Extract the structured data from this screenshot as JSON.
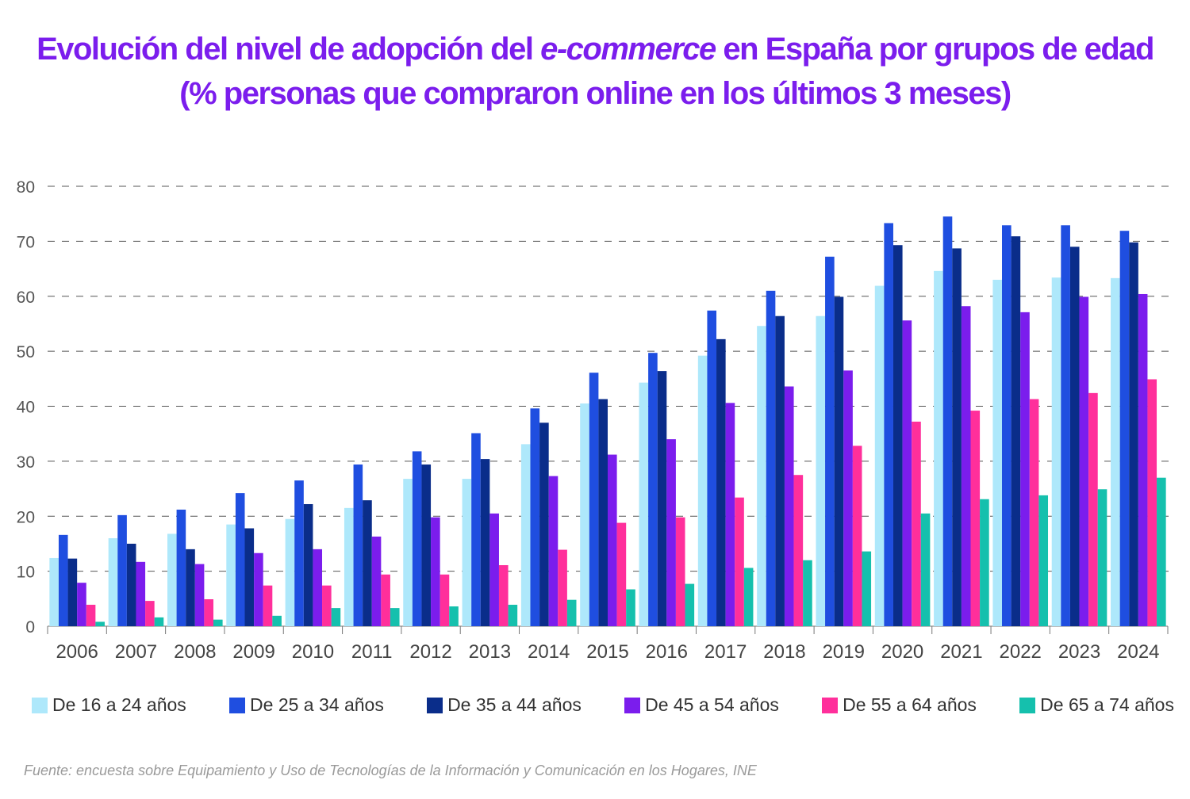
{
  "title": {
    "line1_pre": "Evolución del nivel de adopción del ",
    "line1_italic": "e-commerce",
    "line1_post": " en España por grupos de edad",
    "line2": "(% personas que compraron online en los últimos 3 meses)"
  },
  "source": "Fuente: encuesta sobre Equipamiento y Uso de Tecnologías de la Información y Comunicación en los Hogares, INE",
  "chart_data": {
    "type": "bar",
    "categories": [
      "2006",
      "2007",
      "2008",
      "2009",
      "2010",
      "2011",
      "2012",
      "2013",
      "2014",
      "2015",
      "2016",
      "2017",
      "2018",
      "2019",
      "2020",
      "2021",
      "2022",
      "2023",
      "2024"
    ],
    "ylim": [
      0,
      80
    ],
    "yticks": [
      0,
      10,
      20,
      30,
      40,
      50,
      60,
      70,
      80
    ],
    "grid": "horizontal dashed",
    "legend_position": "bottom",
    "series": [
      {
        "name": "De 16 a 24 años",
        "color": "#aee8fb",
        "values": [
          12.4,
          16.0,
          16.8,
          18.5,
          19.5,
          21.5,
          26.8,
          26.8,
          33.1,
          40.5,
          44.3,
          49.2,
          54.6,
          56.4,
          61.9,
          64.6,
          63.0,
          63.4,
          63.3
        ]
      },
      {
        "name": "De 25 a 34 años",
        "color": "#1f4ee0",
        "values": [
          16.6,
          20.2,
          21.2,
          24.2,
          26.5,
          29.4,
          31.8,
          35.1,
          39.6,
          46.1,
          49.7,
          57.4,
          61.0,
          67.2,
          73.3,
          74.5,
          72.9,
          72.9,
          71.9
        ]
      },
      {
        "name": "De 35 a 44 años",
        "color": "#0a2d8a",
        "values": [
          12.3,
          15.0,
          14.0,
          17.8,
          22.2,
          22.9,
          29.4,
          30.4,
          37.0,
          41.3,
          46.4,
          52.2,
          56.4,
          59.9,
          69.3,
          68.7,
          70.9,
          69.0,
          69.8
        ]
      },
      {
        "name": "De 45 a 54 años",
        "color": "#7b1ded",
        "values": [
          7.9,
          11.7,
          11.3,
          13.3,
          14.0,
          16.3,
          19.8,
          20.5,
          27.3,
          31.2,
          34.0,
          40.6,
          43.6,
          46.5,
          55.6,
          58.2,
          57.1,
          59.9,
          60.4
        ]
      },
      {
        "name": "De 55 a 64 años",
        "color": "#ff2f9b",
        "values": [
          3.9,
          4.6,
          4.9,
          7.4,
          7.4,
          9.4,
          9.4,
          11.1,
          13.9,
          18.8,
          19.8,
          23.4,
          27.5,
          32.8,
          37.2,
          39.2,
          41.3,
          42.4,
          44.9
        ]
      },
      {
        "name": "De 65 a 74 años",
        "color": "#15c0ad",
        "values": [
          0.8,
          1.6,
          1.2,
          1.9,
          3.3,
          3.3,
          3.6,
          3.9,
          4.8,
          6.7,
          7.7,
          10.6,
          12.0,
          13.6,
          20.5,
          23.1,
          23.8,
          24.9,
          27.0
        ]
      }
    ]
  }
}
